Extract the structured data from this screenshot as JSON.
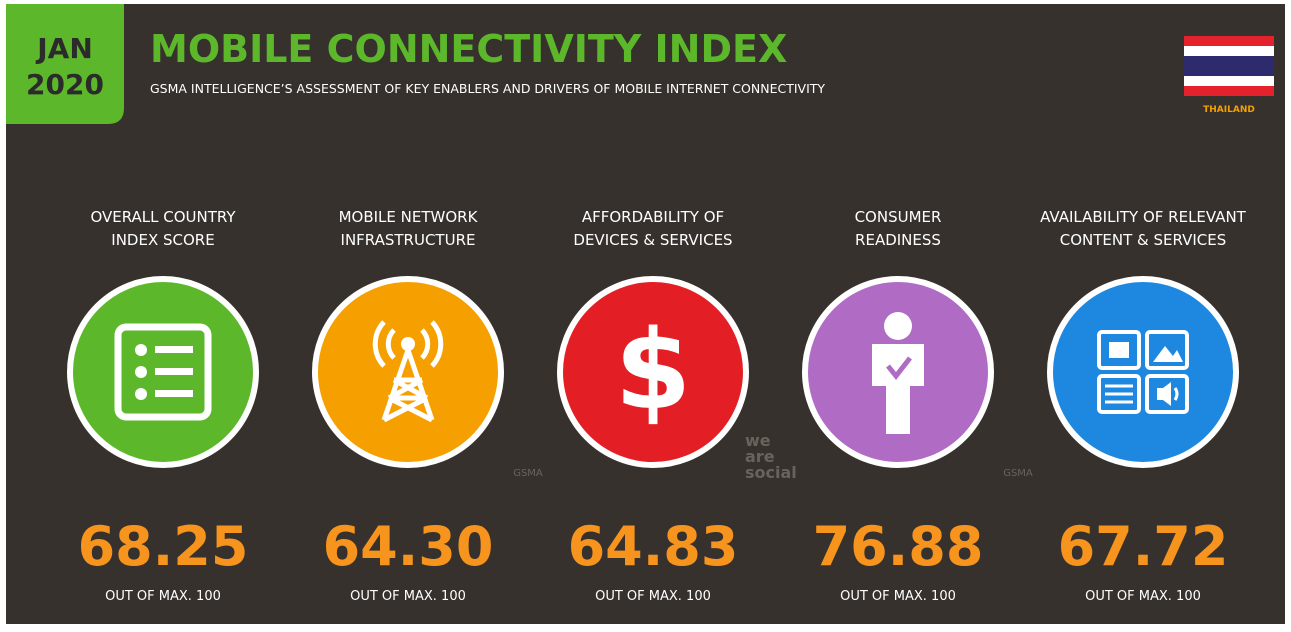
{
  "header": {
    "month": "JAN",
    "year": "2020",
    "title": "MOBILE CONNECTIVITY INDEX",
    "subtitle": "GSMA INTELLIGENCE’S ASSESSMENT OF KEY ENABLERS AND DRIVERS OF MOBILE INTERNET CONNECTIVITY",
    "country": "THAILAND"
  },
  "items": [
    {
      "label": [
        "OVERALL COUNTRY",
        "INDEX SCORE"
      ],
      "value": "68.25",
      "note": "OUT OF MAX. 100",
      "color": "#5cb82a"
    },
    {
      "label": [
        "MOBILE NETWORK",
        "INFRASTRUCTURE"
      ],
      "value": "64.30",
      "note": "OUT OF MAX. 100",
      "color": "#f5a000"
    },
    {
      "label": [
        "AFFORDABILITY OF",
        "DEVICES & SERVICES"
      ],
      "value": "64.83",
      "note": "OUT OF MAX. 100",
      "color": "#e41e25"
    },
    {
      "label": [
        "CONSUMER",
        "READINESS"
      ],
      "value": "76.88",
      "note": "OUT OF MAX. 100",
      "color": "#b06cc4"
    },
    {
      "label": [
        "AVAILABILITY OF RELEVANT",
        "CONTENT & SERVICES"
      ],
      "value": "67.72",
      "note": "OUT OF MAX. 100",
      "color": "#1e88e0"
    }
  ],
  "watermarks": {
    "gsma": "GSMA",
    "we_are_social": [
      "we",
      "are",
      "social"
    ]
  }
}
